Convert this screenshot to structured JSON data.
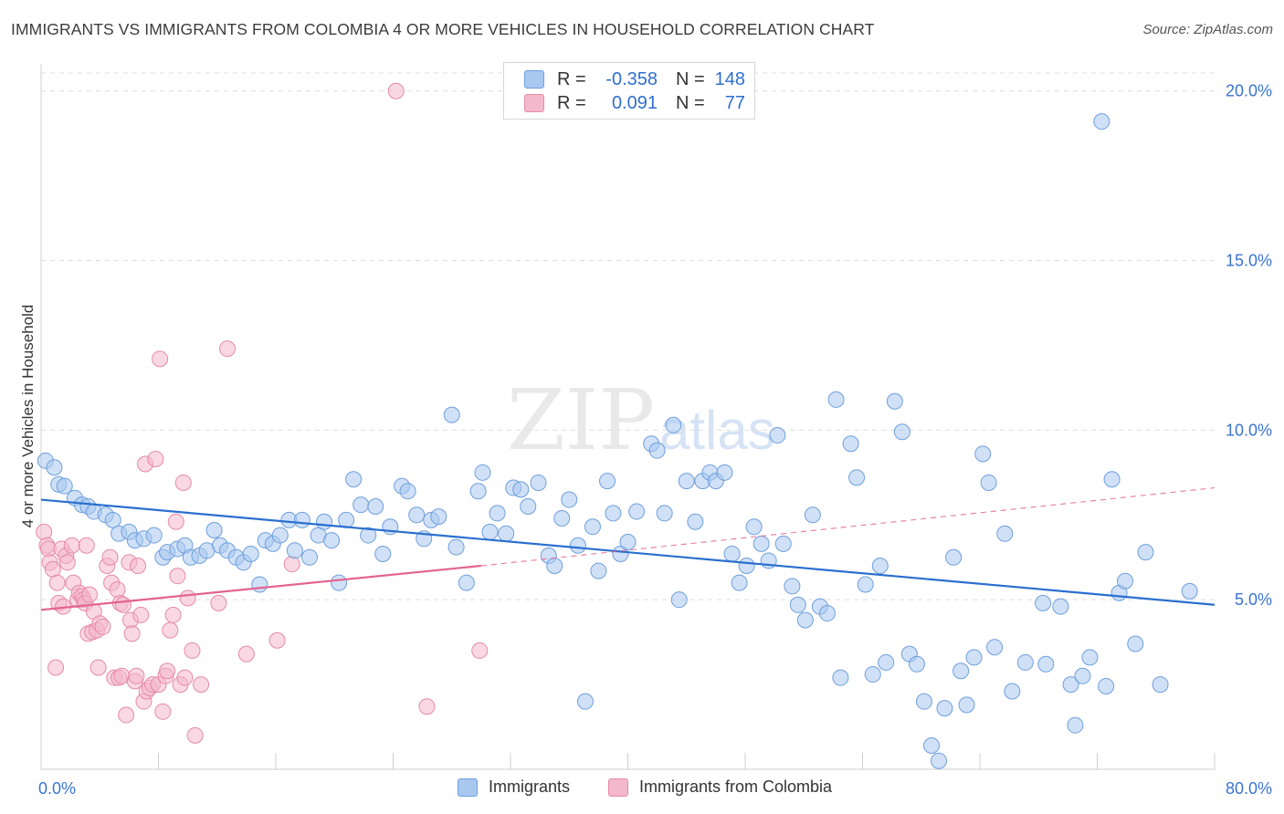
{
  "header": {
    "title": "IMMIGRANTS VS IMMIGRANTS FROM COLOMBIA 4 OR MORE VEHICLES IN HOUSEHOLD CORRELATION CHART",
    "source": "Source: ZipAtlas.com"
  },
  "watermark": {
    "zip": "ZIP",
    "atlas": "atlas"
  },
  "legend": {
    "rows": [
      {
        "r_label": "R =",
        "r_value": "-0.358",
        "n_label": "N =",
        "n_value": "148"
      },
      {
        "r_label": "R =",
        "r_value": "0.091",
        "n_label": "N =",
        "n_value": "77"
      }
    ]
  },
  "bottom_legend": {
    "immigrants": "Immigrants",
    "colombia": "Immigrants from Colombia"
  },
  "colors": {
    "blue_fill": "#a9c8f0",
    "blue_stroke": "#6f9fdc",
    "blue_line": "#2a6fcf",
    "pink_fill": "#f4b8cc",
    "pink_stroke": "#e58aa8",
    "pink_line": "#e2648f",
    "axis_text": "#3a74d0",
    "grid": "#dedede"
  },
  "chart_data": {
    "type": "scatter",
    "title": "IMMIGRANTS VS IMMIGRANTS FROM COLOMBIA 4 OR MORE VEHICLES IN HOUSEHOLD CORRELATION CHART",
    "xlabel": "",
    "ylabel": "4 or more Vehicles in Household",
    "xlim": [
      0,
      80
    ],
    "ylim": [
      0,
      20.8
    ],
    "x_tick_labels": [
      "0.0%",
      "80.0%"
    ],
    "y_ticks": [
      5,
      10,
      15,
      20
    ],
    "y_tick_labels": [
      "5.0%",
      "10.0%",
      "15.0%",
      "20.0%"
    ],
    "grid": true,
    "series": [
      {
        "name": "Immigrants",
        "r": -0.358,
        "n": 148,
        "trend": {
          "x": [
            0,
            80
          ],
          "y": [
            7.95,
            4.85
          ],
          "dashed_extension": false
        },
        "points": [
          [
            0.3,
            9.1
          ],
          [
            0.9,
            8.9
          ],
          [
            1.2,
            8.4
          ],
          [
            1.6,
            8.35
          ],
          [
            2.3,
            8.0
          ],
          [
            2.8,
            7.8
          ],
          [
            3.2,
            7.75
          ],
          [
            3.6,
            7.6
          ],
          [
            4.4,
            7.5
          ],
          [
            4.9,
            7.35
          ],
          [
            5.3,
            6.95
          ],
          [
            6.0,
            7.0
          ],
          [
            6.4,
            6.75
          ],
          [
            7.0,
            6.8
          ],
          [
            7.7,
            6.9
          ],
          [
            8.3,
            6.25
          ],
          [
            8.6,
            6.4
          ],
          [
            9.3,
            6.5
          ],
          [
            9.8,
            6.6
          ],
          [
            10.2,
            6.25
          ],
          [
            10.8,
            6.3
          ],
          [
            11.3,
            6.45
          ],
          [
            11.8,
            7.05
          ],
          [
            12.2,
            6.6
          ],
          [
            12.7,
            6.45
          ],
          [
            13.3,
            6.25
          ],
          [
            13.8,
            6.1
          ],
          [
            14.3,
            6.35
          ],
          [
            14.9,
            5.45
          ],
          [
            15.3,
            6.75
          ],
          [
            15.8,
            6.65
          ],
          [
            16.3,
            6.9
          ],
          [
            16.9,
            7.35
          ],
          [
            17.3,
            6.45
          ],
          [
            17.8,
            7.35
          ],
          [
            18.3,
            6.25
          ],
          [
            18.9,
            6.9
          ],
          [
            19.3,
            7.3
          ],
          [
            19.8,
            6.75
          ],
          [
            20.3,
            5.5
          ],
          [
            20.8,
            7.35
          ],
          [
            21.3,
            8.55
          ],
          [
            21.8,
            7.8
          ],
          [
            22.3,
            6.9
          ],
          [
            22.8,
            7.75
          ],
          [
            23.3,
            6.35
          ],
          [
            23.8,
            7.15
          ],
          [
            24.6,
            8.35
          ],
          [
            25.0,
            8.2
          ],
          [
            25.6,
            7.5
          ],
          [
            26.1,
            6.8
          ],
          [
            26.6,
            7.35
          ],
          [
            27.1,
            7.45
          ],
          [
            28.0,
            10.45
          ],
          [
            28.3,
            6.55
          ],
          [
            29.0,
            5.5
          ],
          [
            29.8,
            8.2
          ],
          [
            30.1,
            8.75
          ],
          [
            30.6,
            7.0
          ],
          [
            31.1,
            7.55
          ],
          [
            31.7,
            6.95
          ],
          [
            32.2,
            8.3
          ],
          [
            32.7,
            8.25
          ],
          [
            33.2,
            7.75
          ],
          [
            33.9,
            8.45
          ],
          [
            34.6,
            6.3
          ],
          [
            35.0,
            6.0
          ],
          [
            35.5,
            7.4
          ],
          [
            36.0,
            7.95
          ],
          [
            36.6,
            6.6
          ],
          [
            37.1,
            2.0
          ],
          [
            37.6,
            7.15
          ],
          [
            38.0,
            5.85
          ],
          [
            38.6,
            8.5
          ],
          [
            39.0,
            7.55
          ],
          [
            39.5,
            6.35
          ],
          [
            40.0,
            6.7
          ],
          [
            40.6,
            7.6
          ],
          [
            41.6,
            9.6
          ],
          [
            42.0,
            9.4
          ],
          [
            42.5,
            7.55
          ],
          [
            43.1,
            10.15
          ],
          [
            43.5,
            5.0
          ],
          [
            44.0,
            8.5
          ],
          [
            44.6,
            7.3
          ],
          [
            45.1,
            8.5
          ],
          [
            45.6,
            8.75
          ],
          [
            46.0,
            8.5
          ],
          [
            46.6,
            8.75
          ],
          [
            47.1,
            6.35
          ],
          [
            47.6,
            5.5
          ],
          [
            48.1,
            6.0
          ],
          [
            48.6,
            7.15
          ],
          [
            49.1,
            6.65
          ],
          [
            49.6,
            6.15
          ],
          [
            50.2,
            9.85
          ],
          [
            50.6,
            6.65
          ],
          [
            51.2,
            5.4
          ],
          [
            51.6,
            4.85
          ],
          [
            52.1,
            4.4
          ],
          [
            52.6,
            7.5
          ],
          [
            53.1,
            4.8
          ],
          [
            53.6,
            4.6
          ],
          [
            54.2,
            10.9
          ],
          [
            54.5,
            2.7
          ],
          [
            55.2,
            9.6
          ],
          [
            55.6,
            8.6
          ],
          [
            56.2,
            5.45
          ],
          [
            56.7,
            2.8
          ],
          [
            57.2,
            6.0
          ],
          [
            57.6,
            3.15
          ],
          [
            58.2,
            10.85
          ],
          [
            58.7,
            9.95
          ],
          [
            59.2,
            3.4
          ],
          [
            59.7,
            3.1
          ],
          [
            60.2,
            2.0
          ],
          [
            60.7,
            0.7
          ],
          [
            61.2,
            0.25
          ],
          [
            61.6,
            1.8
          ],
          [
            62.2,
            6.25
          ],
          [
            62.7,
            2.9
          ],
          [
            63.1,
            1.9
          ],
          [
            63.6,
            3.3
          ],
          [
            64.2,
            9.3
          ],
          [
            64.6,
            8.45
          ],
          [
            65.0,
            3.6
          ],
          [
            65.7,
            6.95
          ],
          [
            66.2,
            2.3
          ],
          [
            67.1,
            3.15
          ],
          [
            68.3,
            4.9
          ],
          [
            68.5,
            3.1
          ],
          [
            69.5,
            4.8
          ],
          [
            70.2,
            2.5
          ],
          [
            70.5,
            1.3
          ],
          [
            71.0,
            2.75
          ],
          [
            71.5,
            3.3
          ],
          [
            72.3,
            19.1
          ],
          [
            72.6,
            2.45
          ],
          [
            73.0,
            8.55
          ],
          [
            73.5,
            5.2
          ],
          [
            73.9,
            5.55
          ],
          [
            74.6,
            3.7
          ],
          [
            75.3,
            6.4
          ],
          [
            76.3,
            2.5
          ],
          [
            78.3,
            5.25
          ]
        ]
      },
      {
        "name": "Immigrants from Colombia",
        "r": 0.091,
        "n": 77,
        "trend": {
          "x": [
            0,
            30
          ],
          "y": [
            4.7,
            6.0
          ],
          "dashed_to": [
            80,
            8.3
          ]
        },
        "points": [
          [
            0.2,
            7.0
          ],
          [
            0.4,
            6.6
          ],
          [
            0.5,
            6.5
          ],
          [
            0.6,
            6.1
          ],
          [
            0.8,
            5.9
          ],
          [
            1.0,
            3.0
          ],
          [
            1.1,
            5.5
          ],
          [
            1.2,
            4.9
          ],
          [
            1.4,
            6.5
          ],
          [
            1.5,
            4.8
          ],
          [
            1.7,
            6.3
          ],
          [
            1.8,
            6.1
          ],
          [
            2.1,
            6.6
          ],
          [
            2.2,
            5.5
          ],
          [
            2.5,
            5.0
          ],
          [
            2.6,
            5.2
          ],
          [
            2.8,
            5.1
          ],
          [
            2.9,
            5.0
          ],
          [
            3.0,
            4.9
          ],
          [
            3.1,
            6.6
          ],
          [
            3.2,
            4.0
          ],
          [
            3.3,
            5.15
          ],
          [
            3.5,
            4.05
          ],
          [
            3.6,
            4.65
          ],
          [
            3.8,
            4.1
          ],
          [
            3.9,
            3.0
          ],
          [
            4.0,
            4.3
          ],
          [
            4.2,
            4.2
          ],
          [
            4.5,
            6.0
          ],
          [
            4.7,
            6.25
          ],
          [
            4.8,
            5.5
          ],
          [
            5.0,
            2.7
          ],
          [
            5.2,
            5.3
          ],
          [
            5.3,
            2.7
          ],
          [
            5.4,
            4.9
          ],
          [
            5.5,
            2.75
          ],
          [
            5.6,
            4.85
          ],
          [
            5.8,
            1.6
          ],
          [
            6.0,
            6.1
          ],
          [
            6.1,
            4.4
          ],
          [
            6.2,
            4.0
          ],
          [
            6.4,
            2.6
          ],
          [
            6.5,
            2.75
          ],
          [
            6.6,
            6.0
          ],
          [
            6.8,
            4.55
          ],
          [
            7.0,
            2.0
          ],
          [
            7.1,
            9.0
          ],
          [
            7.2,
            2.3
          ],
          [
            7.4,
            2.4
          ],
          [
            7.6,
            2.5
          ],
          [
            7.8,
            9.15
          ],
          [
            8.0,
            2.5
          ],
          [
            8.1,
            12.1
          ],
          [
            8.3,
            1.7
          ],
          [
            8.5,
            2.75
          ],
          [
            8.6,
            2.9
          ],
          [
            8.8,
            4.1
          ],
          [
            9.0,
            4.55
          ],
          [
            9.2,
            7.3
          ],
          [
            9.3,
            5.7
          ],
          [
            9.5,
            2.5
          ],
          [
            9.7,
            8.45
          ],
          [
            9.8,
            2.7
          ],
          [
            10.0,
            5.05
          ],
          [
            10.3,
            3.5
          ],
          [
            10.5,
            1.0
          ],
          [
            10.9,
            2.5
          ],
          [
            12.1,
            4.9
          ],
          [
            12.7,
            12.4
          ],
          [
            14.0,
            3.4
          ],
          [
            16.1,
            3.8
          ],
          [
            17.1,
            6.05
          ],
          [
            24.2,
            20.0
          ],
          [
            26.3,
            1.85
          ],
          [
            29.9,
            3.5
          ]
        ]
      }
    ]
  }
}
